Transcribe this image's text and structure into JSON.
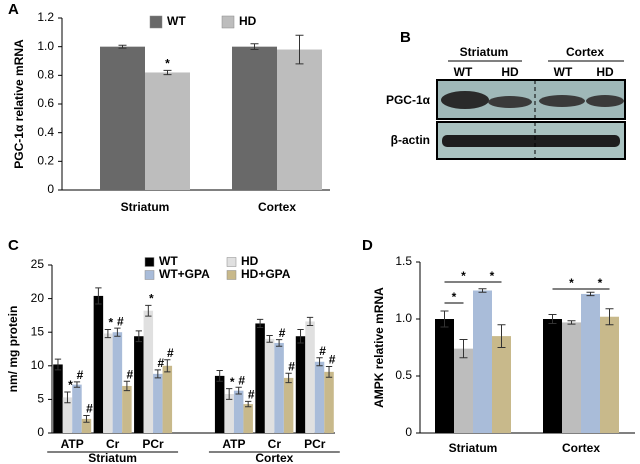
{
  "chart_data": [
    {
      "type": "bar",
      "panel": "A",
      "ylabel": "PGC-1α relative mRNA",
      "categories": [
        "Striatum",
        "Cortex"
      ],
      "series": [
        {
          "name": "WT",
          "color": "#696969",
          "values": [
            1.0,
            1.0
          ],
          "errors": [
            0.01,
            0.02
          ]
        },
        {
          "name": "HD",
          "color": "#bdbdbd",
          "values": [
            0.82,
            0.98
          ],
          "errors": [
            0.015,
            0.1
          ],
          "annotations": [
            "*",
            null
          ]
        }
      ],
      "ylim": [
        0,
        1.2
      ],
      "yticks": [
        0,
        0.2,
        0.4,
        0.6,
        0.8,
        {
          "value": 1,
          "label": "1.0"
        },
        1.2
      ],
      "legend": "top"
    },
    {
      "type": "bar",
      "panel": "C",
      "ylabel": "nm/ mg protein",
      "categories": [
        "ATP",
        "Cr",
        "PCr",
        "ATP",
        "Cr",
        "PCr"
      ],
      "groups": [
        "Striatum",
        "Cortex"
      ],
      "series": [
        {
          "name": "WT",
          "color": "#000000",
          "values": [
            10.2,
            20.4,
            14.4,
            8.5,
            16.3,
            14.4
          ],
          "errors": [
            0.8,
            1.2,
            0.8,
            0.8,
            0.6,
            1.0
          ]
        },
        {
          "name": "HD",
          "color": "#e0e0e0",
          "values": [
            5.3,
            14.8,
            18.2,
            5.8,
            14.0,
            16.6
          ],
          "errors": [
            0.8,
            0.6,
            0.8,
            0.8,
            0.5,
            0.6
          ],
          "annotations": [
            "*",
            "*",
            "*",
            "*",
            null,
            null
          ]
        },
        {
          "name": "WT+GPA",
          "color": "#a9bcd9",
          "values": [
            7.2,
            15.0,
            8.8,
            6.3,
            13.4,
            10.6
          ],
          "errors": [
            0.4,
            0.6,
            0.6,
            0.5,
            0.5,
            0.6
          ],
          "annotations": [
            "#",
            "#",
            "#",
            "#",
            "#",
            "#"
          ]
        },
        {
          "name": "HD+GPA",
          "color": "#c8b98b",
          "values": [
            2.1,
            7.0,
            10.0,
            4.3,
            8.2,
            9.1
          ],
          "errors": [
            0.5,
            0.7,
            0.9,
            0.4,
            0.7,
            0.8
          ],
          "annotations": [
            "#",
            "#",
            "#",
            "#",
            "#",
            "#"
          ]
        }
      ],
      "ylim": [
        0,
        25
      ],
      "yticks": [
        0,
        5,
        10,
        15,
        20,
        25
      ],
      "legend": "top"
    },
    {
      "type": "bar",
      "panel": "D",
      "ylabel": "AMPK relative mRNA",
      "categories": [
        "Striatum",
        "Cortex"
      ],
      "series": [
        {
          "color": "#000000",
          "values": [
            1.0,
            1.0
          ],
          "errors": [
            0.07,
            0.04
          ]
        },
        {
          "color": "#bdbdbd",
          "values": [
            0.74,
            0.97
          ],
          "errors": [
            0.08,
            0.015
          ]
        },
        {
          "color": "#a9bcd9",
          "values": [
            1.25,
            1.22
          ],
          "errors": [
            0.015,
            0.015
          ]
        },
        {
          "color": "#c8b98b",
          "values": [
            0.85,
            1.02
          ],
          "errors": [
            0.1,
            0.07
          ]
        }
      ],
      "significance": [
        "*",
        "*",
        "*",
        "*",
        "*"
      ],
      "ylim": [
        0,
        1.5
      ],
      "yticks": [
        0,
        0.5,
        {
          "value": 1,
          "label": "1.0"
        },
        1.5
      ]
    }
  ],
  "blot": {
    "panel": "B",
    "regions": [
      "Striatum",
      "Cortex"
    ],
    "lanes": [
      "WT",
      "HD",
      "WT",
      "HD"
    ],
    "rows": [
      "PGC-1α",
      "β-actin"
    ]
  }
}
